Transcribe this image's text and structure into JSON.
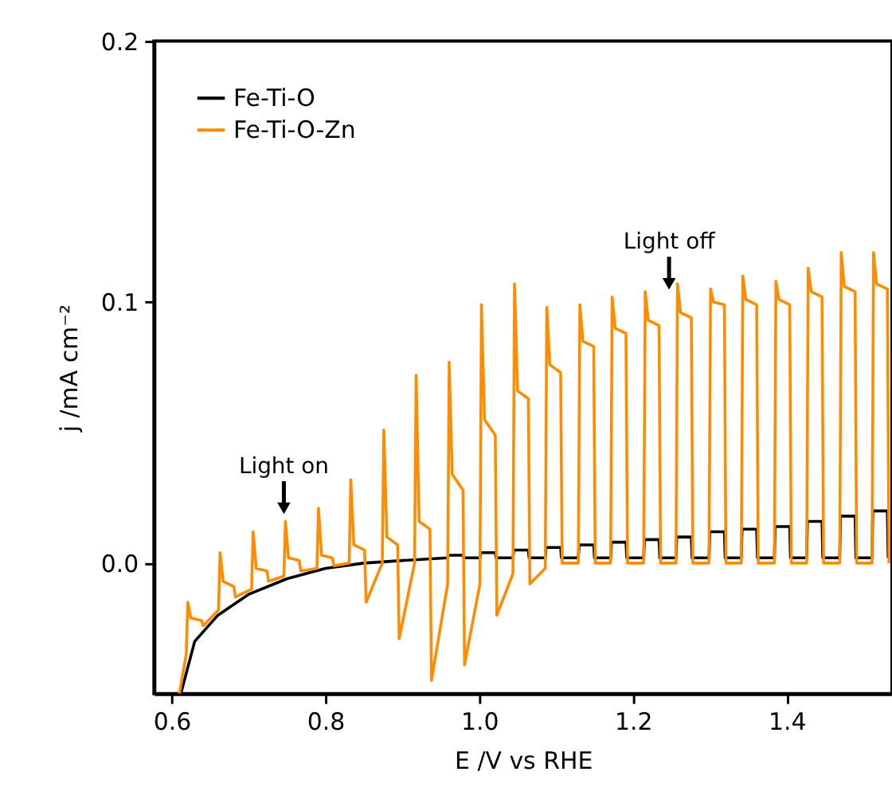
{
  "chart_data": {
    "type": "line",
    "xlabel": "E /V vs RHE",
    "ylabel": "j /mA cm⁻²",
    "xlim": [
      0.577,
      1.537
    ],
    "ylim": [
      -0.05,
      0.2
    ],
    "xticks": [
      {
        "value": 0.6,
        "label": "0.6"
      },
      {
        "value": 0.8,
        "label": "0.8"
      },
      {
        "value": 1.0,
        "label": "1.0"
      },
      {
        "value": 1.2,
        "label": "1.2"
      },
      {
        "value": 1.4,
        "label": "1.4"
      }
    ],
    "yticks": [
      {
        "value": 0,
        "label": "0.0"
      },
      {
        "value": 0.1,
        "label": "0.1"
      },
      {
        "value": 0.2,
        "label": "0.2"
      }
    ],
    "grid": false,
    "legend": "top left",
    "marker": "none",
    "line_style": "solid",
    "annotations": [
      {
        "text": "Light on",
        "x": 0.746,
        "y": 0.018
      },
      {
        "text": "Light off",
        "x": 1.247,
        "y": 0.104
      }
    ],
    "series": [
      {
        "name": "Fe-Ti-O",
        "color": "#000000",
        "x": [
          0.612,
          0.63,
          0.66,
          0.7,
          0.75,
          0.8,
          0.85,
          0.9,
          0.959,
          0.96,
          0.979,
          0.98,
          1.001,
          1.002,
          1.021,
          1.022,
          1.044,
          1.045,
          1.064,
          1.065,
          1.086,
          1.087,
          1.106,
          1.107,
          1.129,
          1.13,
          1.149,
          1.15,
          1.171,
          1.172,
          1.191,
          1.192,
          1.214,
          1.215,
          1.234,
          1.235,
          1.256,
          1.257,
          1.276,
          1.277,
          1.299,
          1.3,
          1.319,
          1.32,
          1.341,
          1.342,
          1.361,
          1.362,
          1.384,
          1.385,
          1.404,
          1.405,
          1.426,
          1.427,
          1.446,
          1.447,
          1.469,
          1.47,
          1.489,
          1.49,
          1.511,
          1.512,
          1.531,
          1.532
        ],
        "values": [
          -0.05,
          -0.03,
          -0.02,
          -0.012,
          -0.006,
          -0.002,
          0.0,
          0.001,
          0.002,
          0.003,
          0.003,
          0.002,
          0.002,
          0.004,
          0.004,
          0.002,
          0.002,
          0.005,
          0.005,
          0.002,
          0.002,
          0.006,
          0.006,
          0.002,
          0.002,
          0.007,
          0.007,
          0.002,
          0.002,
          0.008,
          0.008,
          0.002,
          0.002,
          0.009,
          0.009,
          0.002,
          0.002,
          0.01,
          0.01,
          0.002,
          0.002,
          0.012,
          0.012,
          0.002,
          0.002,
          0.013,
          0.013,
          0.002,
          0.002,
          0.014,
          0.014,
          0.002,
          0.002,
          0.016,
          0.016,
          0.002,
          0.002,
          0.018,
          0.018,
          0.002,
          0.002,
          0.02,
          0.02,
          0.002
        ]
      },
      {
        "name": "Fe-Ti-O-Zn",
        "color": "#ff8c00",
        "x": [
          0.61,
          0.619,
          0.621,
          0.625,
          0.639,
          0.641,
          0.661,
          0.663,
          0.667,
          0.681,
          0.683,
          0.704,
          0.706,
          0.71,
          0.724,
          0.726,
          0.746,
          0.748,
          0.752,
          0.766,
          0.768,
          0.789,
          0.791,
          0.795,
          0.809,
          0.811,
          0.831,
          0.833,
          0.837,
          0.851,
          0.853,
          0.874,
          0.876,
          0.88,
          0.894,
          0.896,
          0.916,
          0.918,
          0.922,
          0.936,
          0.938,
          0.959,
          0.961,
          0.965,
          0.979,
          0.981,
          1.001,
          1.003,
          1.007,
          1.021,
          1.023,
          1.044,
          1.046,
          1.05,
          1.064,
          1.066,
          1.086,
          1.088,
          1.092,
          1.106,
          1.108,
          1.129,
          1.131,
          1.135,
          1.149,
          1.151,
          1.171,
          1.173,
          1.177,
          1.191,
          1.193,
          1.214,
          1.216,
          1.22,
          1.234,
          1.236,
          1.256,
          1.258,
          1.262,
          1.276,
          1.278,
          1.299,
          1.301,
          1.305,
          1.319,
          1.321,
          1.341,
          1.343,
          1.347,
          1.361,
          1.363,
          1.384,
          1.386,
          1.39,
          1.404,
          1.406,
          1.426,
          1.428,
          1.432,
          1.446,
          1.448,
          1.469,
          1.471,
          1.475,
          1.489,
          1.491,
          1.511,
          1.513,
          1.517,
          1.531,
          1.533
        ],
        "values": [
          -0.05,
          -0.035,
          -0.015,
          -0.021,
          -0.022,
          -0.024,
          -0.018,
          0.004,
          -0.007,
          -0.009,
          -0.013,
          -0.01,
          0.012,
          -0.002,
          -0.003,
          -0.007,
          -0.005,
          0.016,
          0.002,
          0.001,
          -0.003,
          -0.002,
          0.021,
          0.003,
          0.002,
          -0.001,
          0.0,
          0.032,
          0.007,
          0.005,
          -0.015,
          0.0,
          0.051,
          0.01,
          0.007,
          -0.029,
          0.0,
          0.072,
          0.016,
          0.013,
          -0.045,
          -0.008,
          0.077,
          0.034,
          0.028,
          -0.039,
          -0.008,
          0.099,
          0.055,
          0.049,
          -0.02,
          -0.004,
          0.107,
          0.066,
          0.063,
          -0.008,
          -0.002,
          0.098,
          0.076,
          0.073,
          0.0,
          0.0,
          0.099,
          0.085,
          0.083,
          0.0,
          0.0,
          0.102,
          0.09,
          0.088,
          0.0,
          0.0,
          0.104,
          0.093,
          0.091,
          0.0,
          0.0,
          0.107,
          0.096,
          0.094,
          0.0,
          0.0,
          0.105,
          0.1,
          0.099,
          0.0,
          0.0,
          0.11,
          0.101,
          0.099,
          0.0,
          0.0,
          0.108,
          0.101,
          0.099,
          0.0,
          0.0,
          0.113,
          0.104,
          0.102,
          0.0,
          0.0,
          0.119,
          0.106,
          0.104,
          0.0,
          0.0,
          0.119,
          0.107,
          0.105,
          0.0
        ]
      }
    ]
  }
}
